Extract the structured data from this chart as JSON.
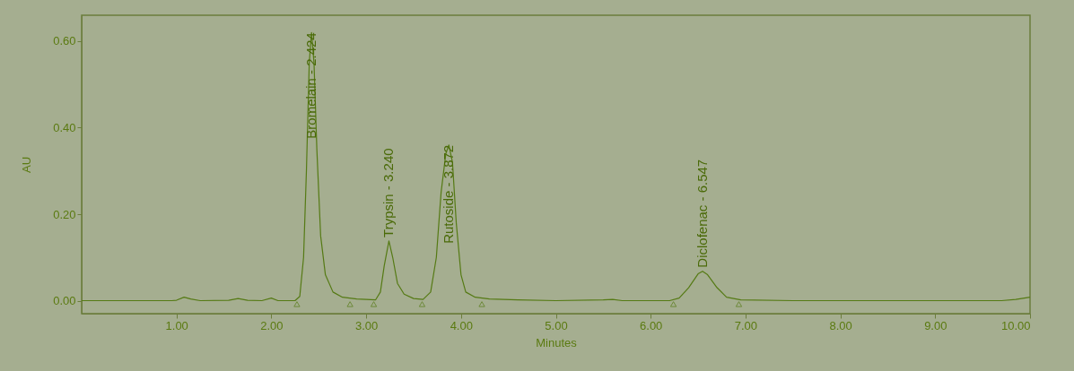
{
  "chart_data": {
    "type": "line",
    "xlabel": "Minutes",
    "ylabel": "AU",
    "xlim": [
      0,
      10
    ],
    "ylim": [
      -0.03,
      0.66
    ],
    "xticks": [
      {
        "value": 1,
        "label": "1.00"
      },
      {
        "value": 2,
        "label": "2.00"
      },
      {
        "value": 3,
        "label": "3.00"
      },
      {
        "value": 4,
        "label": "4.00"
      },
      {
        "value": 5,
        "label": "5.00"
      },
      {
        "value": 6,
        "label": "6.00"
      },
      {
        "value": 7,
        "label": "7.00"
      },
      {
        "value": 8,
        "label": "8.00"
      },
      {
        "value": 9,
        "label": "9.00"
      },
      {
        "value": 10,
        "label": "10.00"
      }
    ],
    "yticks": [
      {
        "value": 0,
        "label": "0.00"
      },
      {
        "value": 0.2,
        "label": "0.20"
      },
      {
        "value": 0.4,
        "label": "0.40"
      },
      {
        "value": 0.6,
        "label": "0.60"
      }
    ],
    "grid": false,
    "marker": "none",
    "line_style": "solid",
    "series": [
      {
        "color": "#557a14",
        "x": [
          0,
          0.95,
          1.0,
          1.08,
          1.15,
          1.25,
          1.55,
          1.65,
          1.75,
          1.9,
          2.0,
          2.07,
          2.25,
          2.3,
          2.34,
          2.37,
          2.4,
          2.424,
          2.45,
          2.48,
          2.52,
          2.57,
          2.65,
          2.75,
          2.9,
          3.1,
          3.15,
          3.19,
          3.24,
          3.28,
          3.33,
          3.4,
          3.5,
          3.6,
          3.68,
          3.74,
          3.79,
          3.84,
          3.872,
          3.91,
          3.95,
          4.0,
          4.05,
          4.15,
          4.3,
          4.6,
          5.0,
          5.5,
          5.6,
          5.7,
          6.2,
          6.3,
          6.4,
          6.5,
          6.547,
          6.6,
          6.7,
          6.8,
          6.95,
          7.5,
          9.7,
          9.85,
          10.0
        ],
        "values": [
          0,
          0,
          0.001,
          0.008,
          0.004,
          0,
          0.001,
          0.005,
          0.001,
          0,
          0.006,
          0,
          0,
          0.01,
          0.1,
          0.3,
          0.55,
          0.62,
          0.55,
          0.35,
          0.15,
          0.06,
          0.02,
          0.008,
          0.004,
          0.002,
          0.02,
          0.08,
          0.138,
          0.1,
          0.04,
          0.015,
          0.005,
          0.003,
          0.02,
          0.1,
          0.25,
          0.34,
          0.36,
          0.32,
          0.18,
          0.06,
          0.02,
          0.008,
          0.004,
          0.002,
          0,
          0.002,
          0.003,
          0,
          0,
          0.006,
          0.03,
          0.062,
          0.068,
          0.06,
          0.03,
          0.008,
          0.002,
          0,
          0,
          0.003,
          0.008
        ]
      },
      {
        "type": "scatter",
        "marker": "triangle",
        "color": "#557a14",
        "x": [
          2.27,
          2.83,
          3.08,
          3.59,
          4.22,
          6.24,
          6.93
        ],
        "values": [
          -0.008,
          -0.008,
          -0.008,
          -0.008,
          -0.008,
          -0.008,
          -0.008
        ]
      }
    ],
    "annotations": [
      {
        "text": "Bromelain - 2.424",
        "x": 2.424,
        "y": 0.62
      },
      {
        "text": "Trypsin - 3.240",
        "x": 3.24,
        "y": 0.138
      },
      {
        "text": "Rutoside - 3.872",
        "x": 3.872,
        "y": 0.36
      },
      {
        "text": "Diclofenac - 6.547",
        "x": 6.547,
        "y": 0.068
      }
    ]
  }
}
